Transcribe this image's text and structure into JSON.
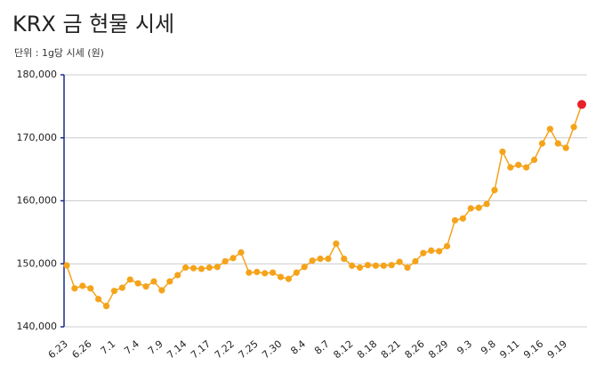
{
  "chart_data": {
    "type": "line",
    "title": "KRX 금 현물 시세",
    "subtitle": "단위 : 1g당 시세 (원)",
    "categories": [
      "6.23",
      null,
      null,
      "6.26",
      null,
      null,
      "7.1",
      null,
      null,
      "7.4",
      null,
      null,
      "7.9",
      null,
      null,
      "7.14",
      null,
      null,
      "7.17",
      null,
      null,
      "7.22",
      null,
      null,
      "7.25",
      null,
      null,
      "7.30",
      null,
      null,
      "8.4",
      null,
      null,
      "8.7",
      null,
      null,
      "8.12",
      null,
      null,
      "8.18",
      null,
      null,
      "8.21",
      null,
      null,
      "8.26",
      null,
      null,
      "8.29",
      null,
      null,
      "9.3",
      null,
      null,
      "9.8",
      null,
      null,
      "9.11",
      null,
      null,
      "9.16",
      null,
      null,
      "9.19",
      null,
      null
    ],
    "series": [
      {
        "name": "KRX 금 현물",
        "color": "#f5a31a",
        "last_point_color": "#e8202a",
        "values": [
          149750,
          146100,
          146500,
          146100,
          144400,
          143300,
          145700,
          146200,
          147500,
          146900,
          146400,
          147200,
          145800,
          147200,
          148200,
          149400,
          149300,
          149200,
          149400,
          149500,
          150400,
          150900,
          151800,
          148600,
          148700,
          148500,
          148600,
          147900,
          147600,
          148600,
          149500,
          150500,
          150800,
          150800,
          153200,
          150800,
          149700,
          149400,
          149800,
          149700,
          149700,
          149800,
          150300,
          149400,
          150400,
          151700,
          152100,
          152000,
          152800,
          156900,
          157200,
          158800,
          158900,
          159500,
          161700,
          167800,
          165300,
          165700,
          165300,
          166500,
          169100,
          171400,
          169100,
          168400,
          171700,
          175300
        ]
      }
    ],
    "ylim": [
      140000,
      180000
    ],
    "yticks": [
      {
        "value": 140000,
        "label": "140,000"
      },
      {
        "value": 150000,
        "label": "150,000"
      },
      {
        "value": 160000,
        "label": "160,000"
      },
      {
        "value": 170000,
        "label": "170,000"
      },
      {
        "value": 180000,
        "label": "180,000"
      }
    ],
    "grid": true
  }
}
